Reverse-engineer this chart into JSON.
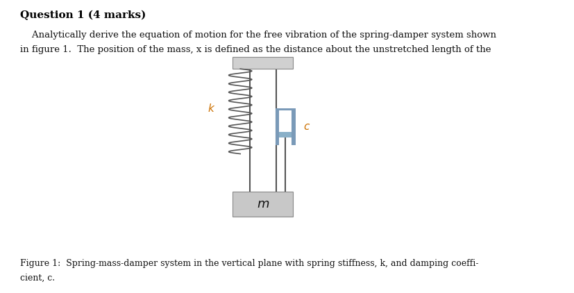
{
  "title": "Question 1 (4 marks)",
  "body_text_line1": "    Analytically derive the equation of motion for the free vibration of the spring-damper system shown",
  "body_text_line2": "in figure 1.  The position of the mass, x is defined as the distance about the unstretched length of the",
  "caption_line1": "Figure 1:  Spring-mass-damper system in the vertical plane with spring stiffness, k, and damping coeffi-",
  "caption_line2": "cient, c.",
  "label_k": "$k$",
  "label_c": "$c$",
  "label_m": "$m$",
  "bg_color": "#ffffff",
  "ceiling_color": "#d0d0d0",
  "ceiling_edge": "#888888",
  "mass_color": "#c8c8c8",
  "mass_edge": "#888888",
  "spring_color": "#555555",
  "rod_color": "#555555",
  "damper_body_color": "#7a9ab8",
  "damper_piston_color": "#8ab0c8"
}
